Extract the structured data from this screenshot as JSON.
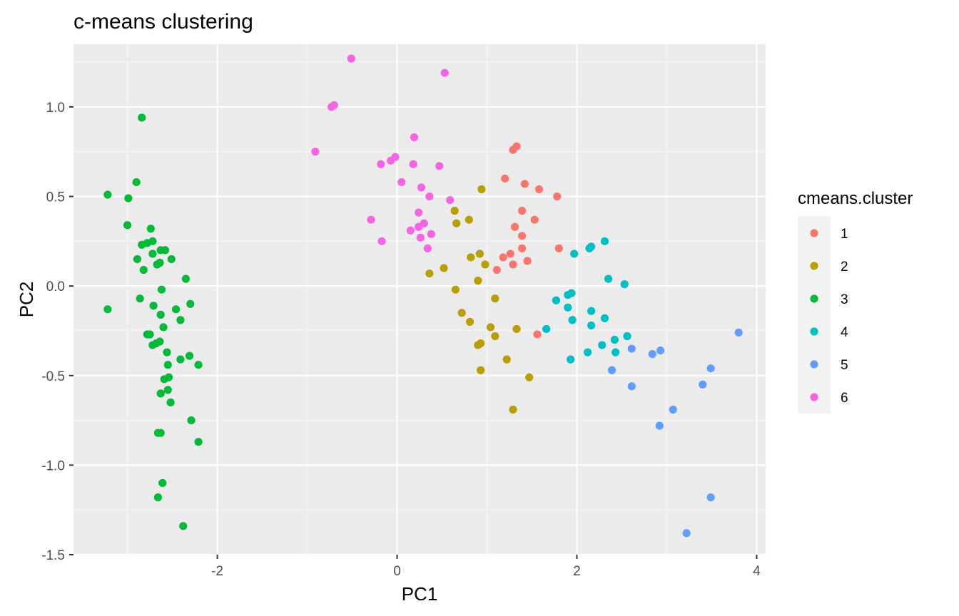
{
  "chart_data": {
    "type": "scatter",
    "title": "c-means clustering",
    "xlabel": "PC1",
    "ylabel": "PC2",
    "xlim": [
      -3.6,
      4.1
    ],
    "ylim": [
      -1.5,
      1.35
    ],
    "x_ticks": [
      -2,
      0,
      2,
      4
    ],
    "y_ticks": [
      -1.5,
      -1.0,
      -0.5,
      0.0,
      0.5,
      1.0
    ],
    "y_tick_labels": [
      "-1.5",
      "-1.0",
      "-0.5",
      "0.0",
      "0.5",
      "1.0"
    ],
    "x_tick_labels": [
      "-2",
      "0",
      "2",
      "4"
    ],
    "grid": true,
    "legend": {
      "title": "cmeans.cluster",
      "position": "right"
    },
    "series": [
      {
        "name": "1",
        "color": "#F8766D",
        "points": [
          [
            1.33,
            0.78
          ],
          [
            1.29,
            0.76
          ],
          [
            1.2,
            0.6
          ],
          [
            1.42,
            0.57
          ],
          [
            1.58,
            0.54
          ],
          [
            1.78,
            0.5
          ],
          [
            1.39,
            0.42
          ],
          [
            1.53,
            0.37
          ],
          [
            1.31,
            0.33
          ],
          [
            1.39,
            0.28
          ],
          [
            1.39,
            0.21
          ],
          [
            1.8,
            0.21
          ],
          [
            1.26,
            0.18
          ],
          [
            1.18,
            0.16
          ],
          [
            1.45,
            0.14
          ],
          [
            1.29,
            0.12
          ],
          [
            1.11,
            0.09
          ],
          [
            1.56,
            -0.27
          ]
        ]
      },
      {
        "name": "2",
        "color": "#B79F00",
        "points": [
          [
            0.94,
            0.54
          ],
          [
            0.64,
            0.42
          ],
          [
            0.8,
            0.37
          ],
          [
            0.66,
            0.35
          ],
          [
            0.92,
            0.18
          ],
          [
            0.82,
            0.16
          ],
          [
            0.98,
            0.12
          ],
          [
            0.52,
            0.1
          ],
          [
            0.36,
            0.07
          ],
          [
            0.9,
            0.03
          ],
          [
            0.65,
            -0.02
          ],
          [
            1.09,
            -0.07
          ],
          [
            0.72,
            -0.15
          ],
          [
            0.81,
            -0.2
          ],
          [
            1.04,
            -0.23
          ],
          [
            1.33,
            -0.24
          ],
          [
            1.09,
            -0.28
          ],
          [
            0.93,
            -0.32
          ],
          [
            0.9,
            -0.33
          ],
          [
            1.22,
            -0.41
          ],
          [
            0.93,
            -0.47
          ],
          [
            1.47,
            -0.51
          ],
          [
            1.29,
            -0.69
          ]
        ]
      },
      {
        "name": "3",
        "color": "#00BA38",
        "points": [
          [
            -2.84,
            0.94
          ],
          [
            -2.9,
            0.58
          ],
          [
            -3.22,
            0.51
          ],
          [
            -2.99,
            0.49
          ],
          [
            -3.0,
            0.34
          ],
          [
            -2.74,
            0.32
          ],
          [
            -2.72,
            0.25
          ],
          [
            -2.78,
            0.24
          ],
          [
            -2.84,
            0.23
          ],
          [
            -2.63,
            0.2
          ],
          [
            -2.58,
            0.2
          ],
          [
            -2.72,
            0.18
          ],
          [
            -2.89,
            0.15
          ],
          [
            -2.51,
            0.15
          ],
          [
            -2.64,
            0.13
          ],
          [
            -2.67,
            0.12
          ],
          [
            -2.82,
            0.09
          ],
          [
            -2.35,
            0.04
          ],
          [
            -2.62,
            -0.02
          ],
          [
            -2.86,
            -0.07
          ],
          [
            -2.3,
            -0.1
          ],
          [
            -2.71,
            -0.11
          ],
          [
            -3.22,
            -0.13
          ],
          [
            -2.46,
            -0.13
          ],
          [
            -2.63,
            -0.16
          ],
          [
            -2.41,
            -0.19
          ],
          [
            -2.6,
            -0.23
          ],
          [
            -2.78,
            -0.27
          ],
          [
            -2.75,
            -0.27
          ],
          [
            -2.64,
            -0.31
          ],
          [
            -2.68,
            -0.32
          ],
          [
            -2.72,
            -0.33
          ],
          [
            -2.56,
            -0.37
          ],
          [
            -2.31,
            -0.39
          ],
          [
            -2.41,
            -0.41
          ],
          [
            -2.21,
            -0.44
          ],
          [
            -2.55,
            -0.44
          ],
          [
            -2.54,
            -0.51
          ],
          [
            -2.59,
            -0.52
          ],
          [
            -2.55,
            -0.58
          ],
          [
            -2.63,
            -0.6
          ],
          [
            -2.52,
            -0.65
          ],
          [
            -2.29,
            -0.75
          ],
          [
            -2.63,
            -0.82
          ],
          [
            -2.66,
            -0.82
          ],
          [
            -2.21,
            -0.87
          ],
          [
            -2.61,
            -1.1
          ],
          [
            -2.66,
            -1.18
          ],
          [
            -2.38,
            -1.34
          ]
        ]
      },
      {
        "name": "4",
        "color": "#00BFC4",
        "points": [
          [
            2.31,
            0.25
          ],
          [
            2.16,
            0.22
          ],
          [
            2.14,
            0.21
          ],
          [
            1.97,
            0.18
          ],
          [
            2.35,
            0.04
          ],
          [
            2.53,
            0.01
          ],
          [
            1.94,
            -0.04
          ],
          [
            1.9,
            -0.05
          ],
          [
            1.77,
            -0.08
          ],
          [
            1.9,
            -0.12
          ],
          [
            2.16,
            -0.14
          ],
          [
            2.31,
            -0.18
          ],
          [
            1.95,
            -0.19
          ],
          [
            2.16,
            -0.22
          ],
          [
            1.66,
            -0.24
          ],
          [
            2.56,
            -0.28
          ],
          [
            2.42,
            -0.3
          ],
          [
            2.28,
            -0.33
          ],
          [
            2.12,
            -0.37
          ],
          [
            2.43,
            -0.37
          ],
          [
            1.93,
            -0.41
          ]
        ]
      },
      {
        "name": "5",
        "color": "#619CFF",
        "points": [
          [
            3.8,
            -0.26
          ],
          [
            2.61,
            -0.35
          ],
          [
            2.93,
            -0.36
          ],
          [
            2.84,
            -0.38
          ],
          [
            2.39,
            -0.47
          ],
          [
            3.49,
            -0.46
          ],
          [
            3.4,
            -0.55
          ],
          [
            2.61,
            -0.56
          ],
          [
            3.07,
            -0.69
          ],
          [
            2.92,
            -0.78
          ],
          [
            3.49,
            -1.18
          ],
          [
            3.22,
            -1.38
          ]
        ]
      },
      {
        "name": "6",
        "color": "#F564E3",
        "points": [
          [
            -0.51,
            1.27
          ],
          [
            0.53,
            1.19
          ],
          [
            -0.7,
            1.01
          ],
          [
            -0.73,
            1.0
          ],
          [
            -0.91,
            0.75
          ],
          [
            0.19,
            0.83
          ],
          [
            -0.02,
            0.72
          ],
          [
            -0.07,
            0.7
          ],
          [
            -0.18,
            0.68
          ],
          [
            0.18,
            0.68
          ],
          [
            0.47,
            0.67
          ],
          [
            0.05,
            0.58
          ],
          [
            0.27,
            0.55
          ],
          [
            0.36,
            0.5
          ],
          [
            0.59,
            0.48
          ],
          [
            0.24,
            0.41
          ],
          [
            -0.29,
            0.37
          ],
          [
            0.3,
            0.35
          ],
          [
            0.24,
            0.33
          ],
          [
            0.15,
            0.31
          ],
          [
            0.38,
            0.29
          ],
          [
            0.26,
            0.27
          ],
          [
            -0.17,
            0.25
          ],
          [
            0.34,
            0.21
          ]
        ]
      }
    ]
  }
}
